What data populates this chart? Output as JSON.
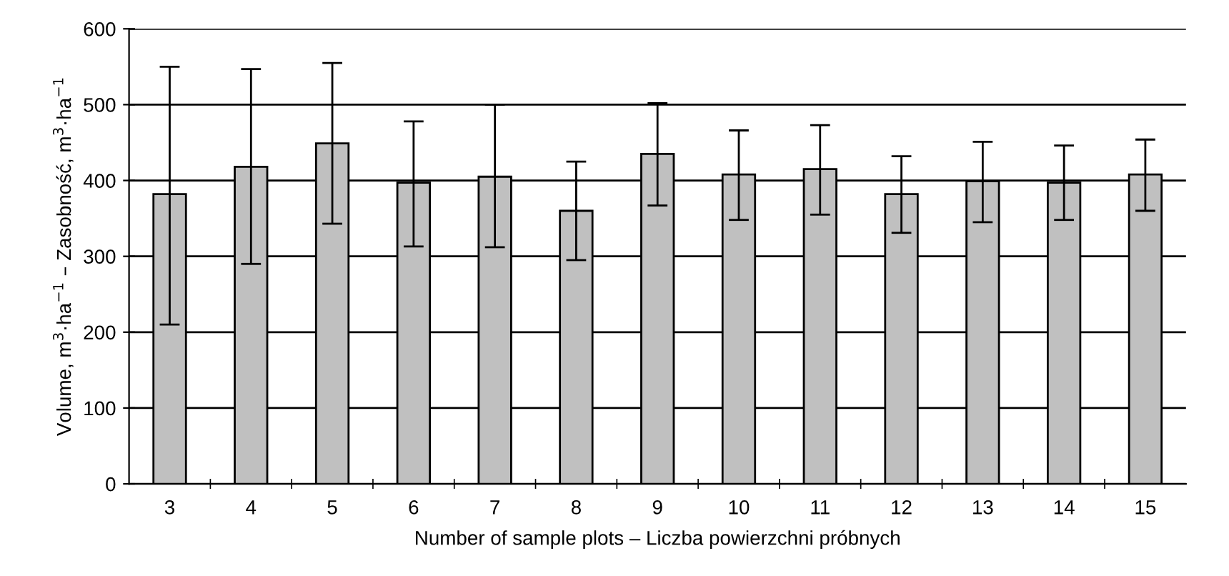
{
  "chart_data": {
    "type": "bar",
    "xlabel": "Number of sample plots – Liczba powierzchni próbnych",
    "ylabel": "Volume, m$^{3}$·ha$^{−1}$ – Zasobność, m$^{3}$·ha$^{−1}$",
    "categories": [
      "3",
      "4",
      "5",
      "6",
      "7",
      "8",
      "9",
      "10",
      "11",
      "12",
      "13",
      "14",
      "15"
    ],
    "values": [
      382,
      418,
      449,
      397,
      405,
      360,
      435,
      408,
      415,
      382,
      399,
      397,
      408
    ],
    "errors": [
      [
        210,
        550
      ],
      [
        290,
        547
      ],
      [
        343,
        555
      ],
      [
        313,
        478
      ],
      [
        312,
        500
      ],
      [
        295,
        425
      ],
      [
        367,
        502
      ],
      [
        348,
        466
      ],
      [
        355,
        473
      ],
      [
        331,
        432
      ],
      [
        345,
        451
      ],
      [
        348,
        446
      ],
      [
        360,
        454
      ]
    ],
    "color": "#c0c0c0",
    "ylim": [
      0,
      600
    ],
    "yticks": [
      0,
      100,
      200,
      300,
      400,
      500,
      600
    ],
    "grid": "y"
  }
}
